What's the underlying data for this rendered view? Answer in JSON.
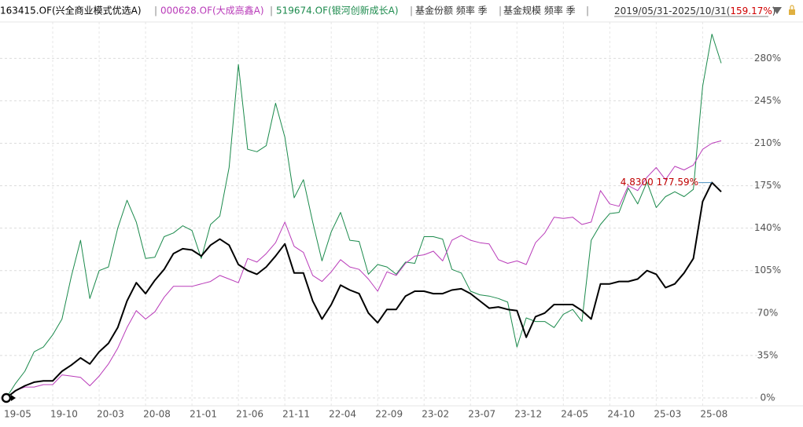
{
  "chart_data": {
    "type": "line",
    "toolbar": {
      "separator": "|",
      "share_item": "基金份额 频率 季",
      "scale_item": "基金规模 频率 季",
      "range_prefix": "2019/05/31-2025/10/31(",
      "range_return": "159.17%",
      "range_suffix": ")"
    },
    "annotation": "4.8300 177.59%",
    "categories": [
      "19-05",
      null,
      null,
      null,
      null,
      "19-10",
      null,
      null,
      null,
      null,
      "20-03",
      null,
      null,
      null,
      null,
      "20-08",
      null,
      null,
      null,
      null,
      "21-01",
      null,
      null,
      null,
      null,
      "21-06",
      null,
      null,
      null,
      null,
      "21-11",
      null,
      null,
      null,
      null,
      "22-04",
      null,
      null,
      null,
      null,
      "22-09",
      null,
      null,
      null,
      null,
      "23-02",
      null,
      null,
      null,
      null,
      "23-07",
      null,
      null,
      null,
      null,
      "23-12",
      null,
      null,
      null,
      null,
      "24-05",
      null,
      null,
      null,
      null,
      "24-10",
      null,
      null,
      null,
      null,
      "25-03",
      null,
      null,
      null,
      null,
      "25-08",
      null,
      null
    ],
    "series": [
      {
        "name": "163415.OF(兴全商业模式优选A)",
        "color": "#000000",
        "values": [
          0,
          6,
          10,
          13,
          14,
          14,
          22,
          27,
          33,
          28,
          38,
          45,
          58,
          80,
          95,
          86,
          97,
          106,
          119,
          123,
          122,
          117,
          126,
          131,
          126,
          110,
          105,
          102,
          108,
          117,
          127,
          103,
          103,
          80,
          65,
          77,
          93,
          89,
          86,
          70,
          62,
          73,
          73,
          84,
          88,
          88,
          86,
          86,
          89,
          90,
          86,
          80,
          74,
          75,
          73,
          72,
          50,
          67,
          70,
          77,
          77,
          77,
          72,
          65,
          94,
          94,
          96,
          96,
          98,
          105,
          102,
          91,
          94,
          103,
          115,
          162,
          177.59,
          170
        ]
      },
      {
        "name": "000628.OF(大成高鑫A)",
        "color": "#b93bb9",
        "values": [
          0,
          6,
          9,
          9,
          11,
          11,
          19,
          18,
          17,
          10,
          18,
          28,
          41,
          58,
          72,
          65,
          71,
          83,
          92,
          92,
          92,
          94,
          96,
          101,
          98,
          95,
          115,
          112,
          119,
          128,
          145,
          125,
          120,
          101,
          96,
          104,
          114,
          108,
          106,
          98,
          88,
          104,
          101,
          111,
          117,
          118,
          121,
          113,
          130,
          134,
          130,
          128,
          127,
          114,
          111,
          113,
          110,
          128,
          136,
          149,
          148,
          149,
          143,
          145,
          171,
          160,
          158,
          175,
          171,
          182,
          190,
          180,
          191,
          188,
          192,
          205,
          210,
          212
        ]
      },
      {
        "name": "519674.OF(银河创新成长A)",
        "color": "#1b8a4c",
        "values": [
          0,
          12,
          22,
          38,
          42,
          52,
          65,
          100,
          130,
          82,
          105,
          108,
          140,
          163,
          145,
          115,
          116,
          133,
          136,
          142,
          138,
          115,
          143,
          150,
          190,
          275,
          205,
          203,
          208,
          243,
          215,
          165,
          180,
          145,
          113,
          137,
          153,
          130,
          129,
          102,
          110,
          108,
          102,
          112,
          111,
          133,
          133,
          131,
          106,
          103,
          88,
          85,
          84,
          82,
          79,
          42,
          66,
          63,
          63,
          58,
          69,
          73,
          63,
          130,
          143,
          152,
          153,
          173,
          160,
          178,
          157,
          166,
          170,
          166,
          172,
          257,
          300,
          276
        ]
      }
    ],
    "ylim": [
      -6.5,
      310
    ],
    "yticks": [
      {
        "value": 0,
        "label": "0%"
      },
      {
        "value": 35,
        "label": "35%"
      },
      {
        "value": 70,
        "label": "70%"
      },
      {
        "value": 105,
        "label": "105%"
      },
      {
        "value": 140,
        "label": "140%"
      },
      {
        "value": 175,
        "label": "175%"
      },
      {
        "value": 210,
        "label": "210%"
      },
      {
        "value": 245,
        "label": "245%"
      },
      {
        "value": 280,
        "label": "280%"
      }
    ],
    "grid": true
  }
}
